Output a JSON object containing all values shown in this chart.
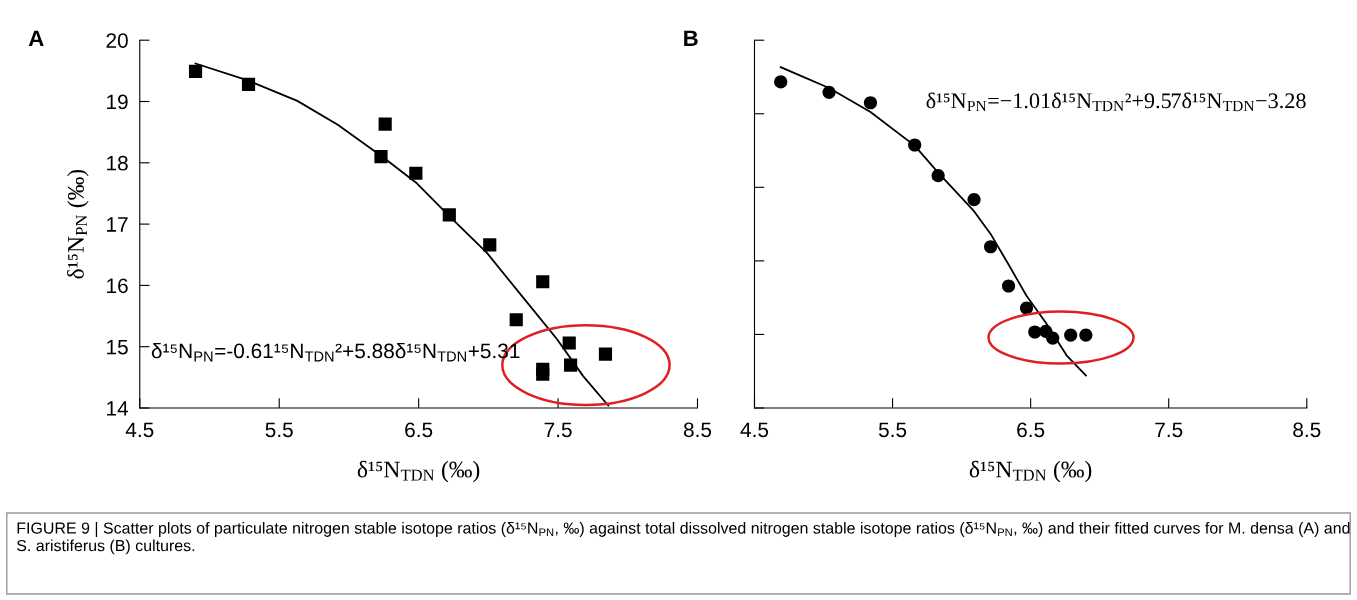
{
  "chart_data": [
    {
      "type": "scatter",
      "ylabel": "δ¹⁵N$_{PN}$ (‰)",
      "xlabel": "δ¹⁵N$_{TDN}$ (‰)",
      "xlim": [
        4.5,
        8.5
      ],
      "xticks": [
        4.5,
        5.5,
        6.5,
        7.5,
        8.5
      ],
      "ylim": [
        14,
        20
      ],
      "yticks": [
        14,
        15,
        16,
        17,
        18,
        19,
        20
      ],
      "grid": false,
      "legend": false,
      "series": [
        {
          "marker": "square",
          "color": "#000000",
          "x": [
            4.9,
            5.28,
            6.26,
            6.23,
            6.48,
            6.72,
            7.01,
            7.2,
            7.39,
            7.39,
            7.39,
            7.58,
            7.59,
            7.84
          ],
          "values": [
            19.49,
            19.28,
            18.63,
            18.1,
            17.83,
            17.15,
            16.66,
            15.44,
            16.06,
            14.63,
            14.55,
            15.06,
            14.7,
            14.88
          ]
        },
        {
          "type": "line",
          "marker": "none",
          "line_style": "solid",
          "color": "#000000",
          "x": [
            4.9,
            5.28,
            5.63,
            5.92,
            6.24,
            6.48,
            6.72,
            6.99,
            7.25,
            7.49,
            7.68,
            7.86
          ],
          "values": [
            19.62,
            19.34,
            19.01,
            18.62,
            18.1,
            17.68,
            17.13,
            16.53,
            15.8,
            15.13,
            14.52,
            14.04
          ]
        }
      ],
      "annotations": [
        "A",
        "δ¹⁵N$_{PN}$=-0.61¹⁵N$_{TDN}$²+5.88δ¹⁵N$_{TDN}$+5.31",
        "FIGURE 9 | Scatter plots of particulate nitrogen stable isotope ratios (δ¹⁵N$_{PN}$, ‰) against total dissolved nitrogen stable isotope ratios (δ¹⁵N$_{PN}$, ‰) and their fitted curves for M. densa (A) and S. aristiferus (B) cultures."
      ]
    },
    {
      "type": "scatter",
      "xlabel": "δ¹⁵N$_{TDN}$ (‰)",
      "xlim": [
        4.5,
        8.5
      ],
      "xticks": [
        4.5,
        5.5,
        6.5,
        7.5,
        8.5
      ],
      "ylim": [
        14,
        20
      ],
      "yticks": [
        {
          "value": 14,
          "label": null
        },
        {
          "value": 15.2,
          "label": null
        },
        {
          "value": 16.4,
          "label": null
        },
        {
          "value": 17.6,
          "label": null
        },
        {
          "value": 18.8,
          "label": null
        },
        {
          "value": 20,
          "label": null
        }
      ],
      "tick_labels": "x",
      "grid": false,
      "legend": false,
      "series": [
        {
          "marker": "circle",
          "color": "#000000",
          "x": [
            4.69,
            5.04,
            5.34,
            5.66,
            5.83,
            6.09,
            6.21,
            6.34,
            6.47,
            6.53,
            6.61,
            6.66,
            6.79,
            6.9
          ],
          "values": [
            19.32,
            19.15,
            18.98,
            18.29,
            17.79,
            17.4,
            16.63,
            15.99,
            15.63,
            15.24,
            15.25,
            15.14,
            15.19,
            15.19
          ]
        },
        {
          "type": "line",
          "marker": "none",
          "line_style": "solid",
          "color": "#000000",
          "x": [
            4.69,
            5.04,
            5.34,
            5.66,
            5.83,
            6.09,
            6.21,
            6.34,
            6.47,
            6.61,
            6.76,
            6.9
          ],
          "values": [
            19.56,
            19.22,
            18.83,
            18.28,
            17.84,
            17.21,
            16.84,
            16.34,
            15.83,
            15.39,
            14.86,
            14.53
          ]
        }
      ],
      "annotations": [
        "B",
        "δ¹⁵N$_{PN}$=−1.01δ¹⁵N$_{TDN}$²+9.57δ¹⁵N$_{TDN}$−3.28"
      ]
    }
  ]
}
